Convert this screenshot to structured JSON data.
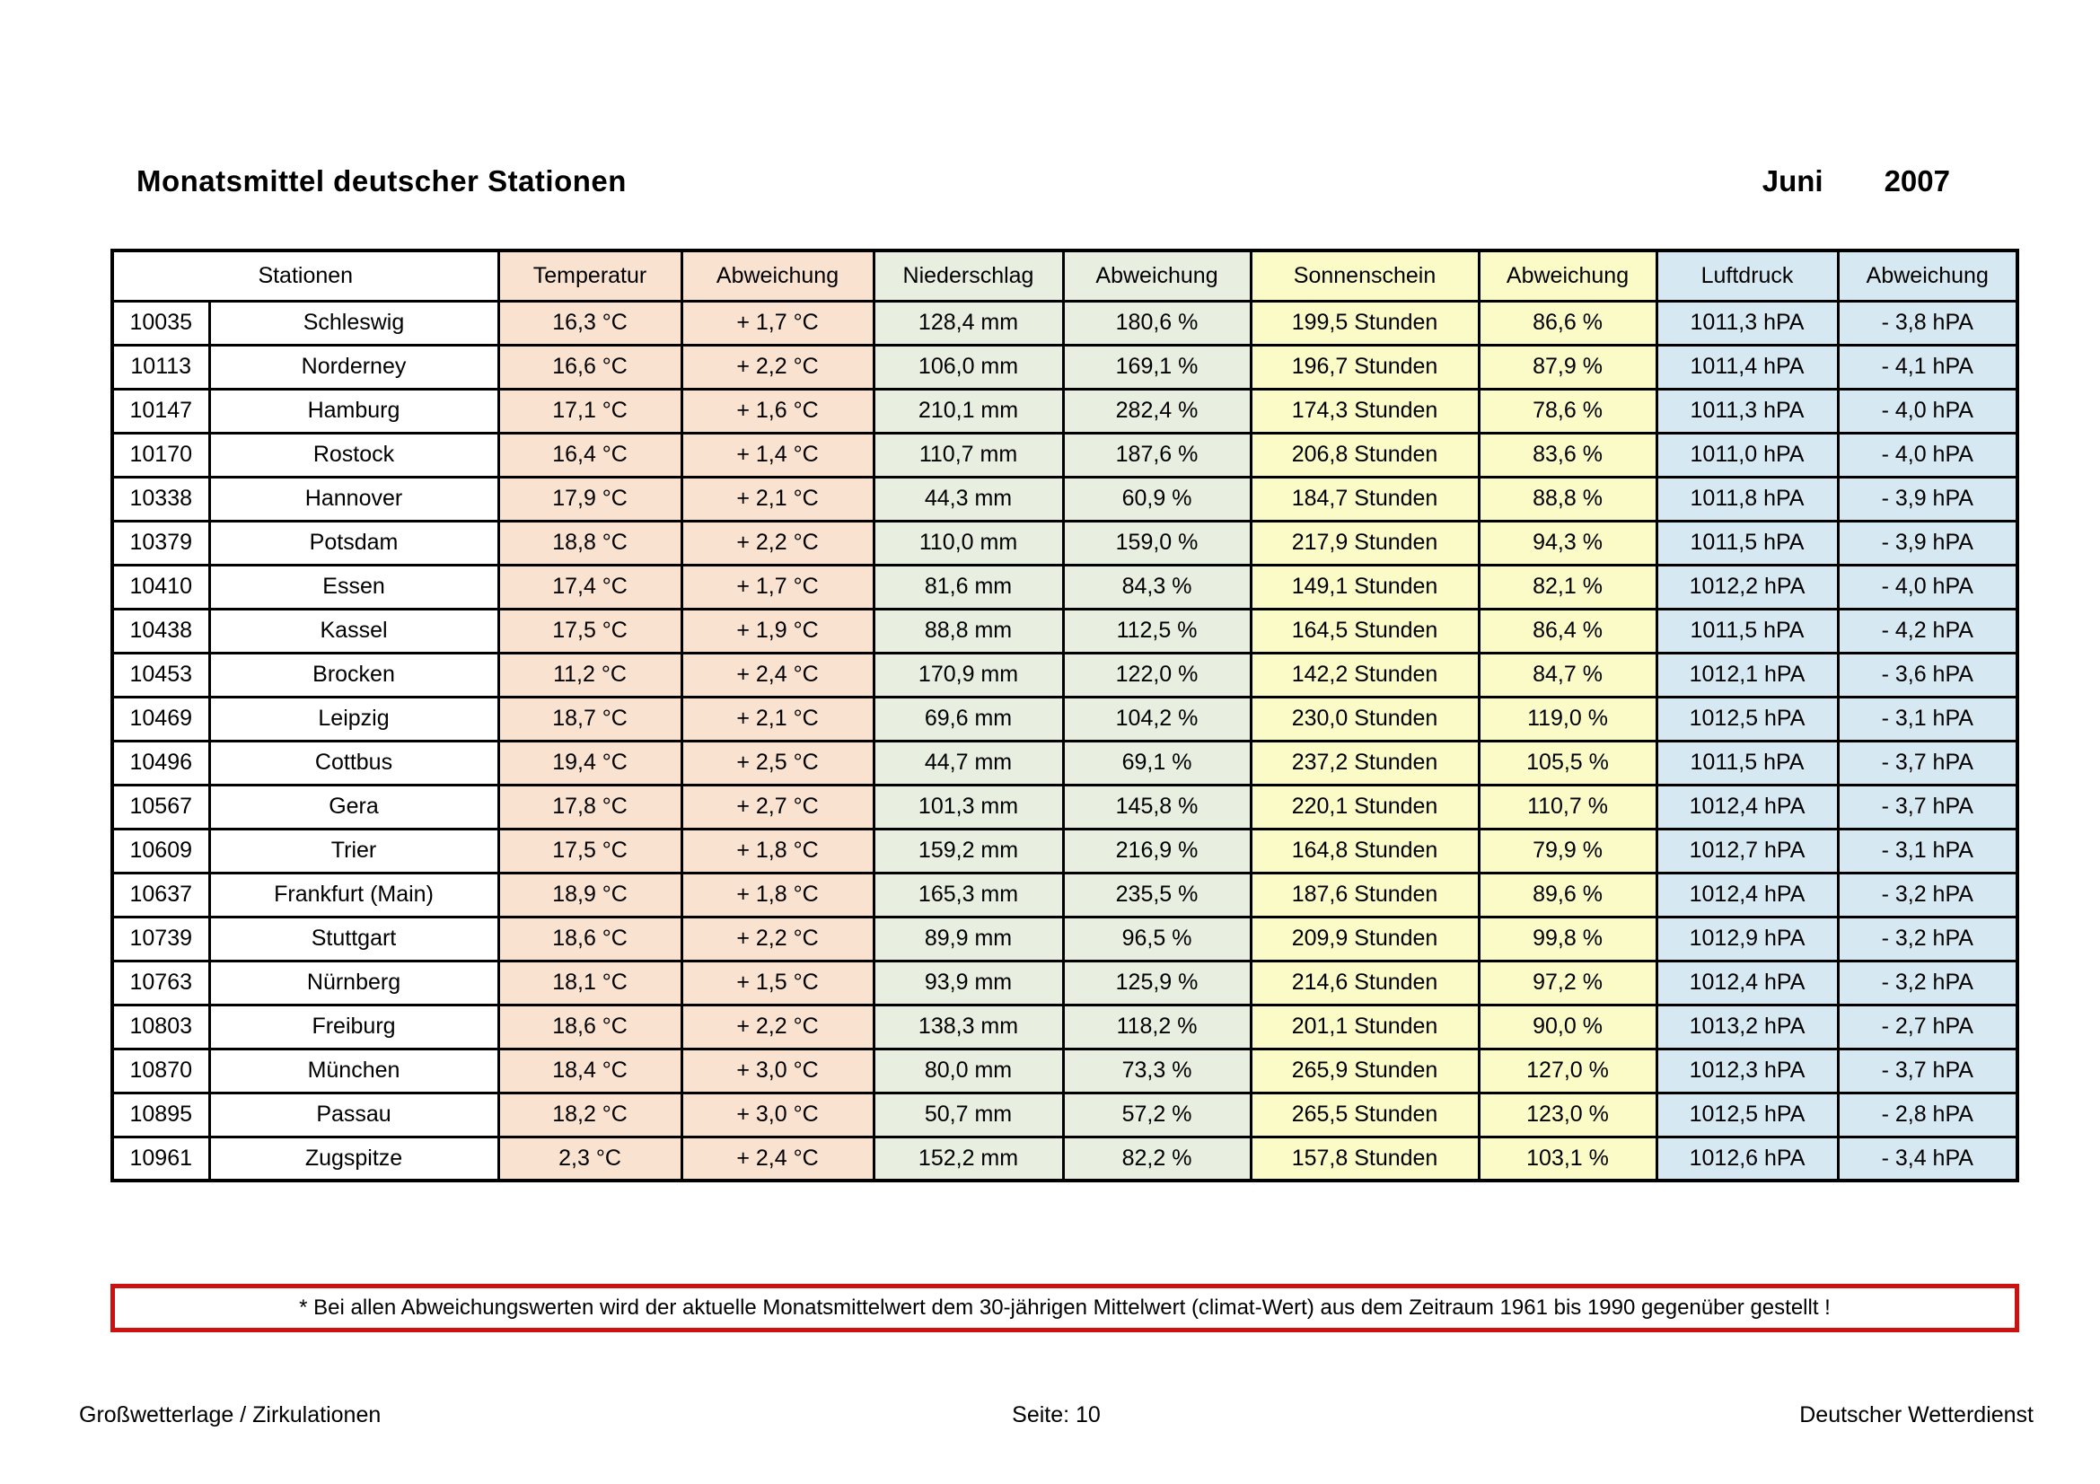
{
  "page": {
    "title": "Monatsmittel deutscher Stationen",
    "month": "Juni",
    "year": "2007",
    "note": "* Bei allen Abweichungswerten wird der aktuelle Monatsmittelwert dem 30-jährigen Mittelwert (climat-Wert) aus dem Zeitraum 1961 bis 1990 gegenüber gestellt !",
    "footer": {
      "left": "Großwetterlage / Zirkulationen",
      "center": "Seite: 10",
      "right": "Deutscher Wetterdienst"
    }
  },
  "colors": {
    "temperature": "#FAE2D1",
    "precipitation": "#E8EEE0",
    "sunshine": "#FBFBC8",
    "pressure": "#D6E8F2",
    "note_border": "#CC1111"
  },
  "table": {
    "header": {
      "stationen": "Stationen",
      "columns": [
        {
          "label": "Temperatur",
          "group": "temperature"
        },
        {
          "label": "Abweichung",
          "group": "temperature"
        },
        {
          "label": "Niederschlag",
          "group": "precipitation"
        },
        {
          "label": "Abweichung",
          "group": "precipitation"
        },
        {
          "label": "Sonnenschein",
          "group": "sunshine"
        },
        {
          "label": "Abweichung",
          "group": "sunshine"
        },
        {
          "label": "Luftdruck",
          "group": "pressure"
        },
        {
          "label": "Abweichung",
          "group": "pressure"
        }
      ]
    },
    "rows": [
      {
        "id": "10035",
        "name": "Schleswig",
        "values": [
          "16,3 °C",
          "+ 1,7 °C",
          "128,4 mm",
          "180,6 %",
          "199,5 Stunden",
          "86,6 %",
          "1011,3 hPA",
          "- 3,8 hPA"
        ]
      },
      {
        "id": "10113",
        "name": "Norderney",
        "values": [
          "16,6 °C",
          "+ 2,2 °C",
          "106,0 mm",
          "169,1 %",
          "196,7 Stunden",
          "87,9 %",
          "1011,4 hPA",
          "- 4,1 hPA"
        ]
      },
      {
        "id": "10147",
        "name": "Hamburg",
        "values": [
          "17,1 °C",
          "+ 1,6 °C",
          "210,1 mm",
          "282,4 %",
          "174,3 Stunden",
          "78,6 %",
          "1011,3 hPA",
          "- 4,0 hPA"
        ]
      },
      {
        "id": "10170",
        "name": "Rostock",
        "values": [
          "16,4 °C",
          "+ 1,4 °C",
          "110,7 mm",
          "187,6 %",
          "206,8 Stunden",
          "83,6 %",
          "1011,0 hPA",
          "- 4,0 hPA"
        ]
      },
      {
        "id": "10338",
        "name": "Hannover",
        "values": [
          "17,9 °C",
          "+ 2,1 °C",
          "44,3 mm",
          "60,9 %",
          "184,7 Stunden",
          "88,8 %",
          "1011,8 hPA",
          "- 3,9 hPA"
        ]
      },
      {
        "id": "10379",
        "name": "Potsdam",
        "values": [
          "18,8 °C",
          "+ 2,2 °C",
          "110,0 mm",
          "159,0 %",
          "217,9 Stunden",
          "94,3 %",
          "1011,5 hPA",
          "- 3,9 hPA"
        ]
      },
      {
        "id": "10410",
        "name": "Essen",
        "values": [
          "17,4 °C",
          "+ 1,7 °C",
          "81,6 mm",
          "84,3 %",
          "149,1 Stunden",
          "82,1 %",
          "1012,2 hPA",
          "- 4,0 hPA"
        ]
      },
      {
        "id": "10438",
        "name": "Kassel",
        "values": [
          "17,5 °C",
          "+ 1,9 °C",
          "88,8 mm",
          "112,5 %",
          "164,5 Stunden",
          "86,4 %",
          "1011,5 hPA",
          "- 4,2 hPA"
        ]
      },
      {
        "id": "10453",
        "name": "Brocken",
        "values": [
          "11,2 °C",
          "+ 2,4 °C",
          "170,9 mm",
          "122,0 %",
          "142,2 Stunden",
          "84,7 %",
          "1012,1 hPA",
          "- 3,6 hPA"
        ]
      },
      {
        "id": "10469",
        "name": "Leipzig",
        "values": [
          "18,7 °C",
          "+ 2,1 °C",
          "69,6 mm",
          "104,2 %",
          "230,0 Stunden",
          "119,0 %",
          "1012,5 hPA",
          "- 3,1 hPA"
        ]
      },
      {
        "id": "10496",
        "name": "Cottbus",
        "values": [
          "19,4 °C",
          "+ 2,5 °C",
          "44,7 mm",
          "69,1 %",
          "237,2 Stunden",
          "105,5 %",
          "1011,5 hPA",
          "- 3,7 hPA"
        ]
      },
      {
        "id": "10567",
        "name": "Gera",
        "values": [
          "17,8 °C",
          "+ 2,7 °C",
          "101,3 mm",
          "145,8 %",
          "220,1 Stunden",
          "110,7 %",
          "1012,4 hPA",
          "- 3,7 hPA"
        ]
      },
      {
        "id": "10609",
        "name": "Trier",
        "values": [
          "17,5 °C",
          "+ 1,8 °C",
          "159,2 mm",
          "216,9 %",
          "164,8 Stunden",
          "79,9 %",
          "1012,7 hPA",
          "- 3,1 hPA"
        ]
      },
      {
        "id": "10637",
        "name": "Frankfurt (Main)",
        "values": [
          "18,9 °C",
          "+ 1,8 °C",
          "165,3 mm",
          "235,5 %",
          "187,6 Stunden",
          "89,6 %",
          "1012,4 hPA",
          "- 3,2 hPA"
        ]
      },
      {
        "id": "10739",
        "name": "Stuttgart",
        "values": [
          "18,6 °C",
          "+ 2,2 °C",
          "89,9 mm",
          "96,5 %",
          "209,9 Stunden",
          "99,8 %",
          "1012,9 hPA",
          "- 3,2 hPA"
        ]
      },
      {
        "id": "10763",
        "name": "Nürnberg",
        "values": [
          "18,1 °C",
          "+ 1,5 °C",
          "93,9 mm",
          "125,9 %",
          "214,6 Stunden",
          "97,2 %",
          "1012,4 hPA",
          "- 3,2 hPA"
        ]
      },
      {
        "id": "10803",
        "name": "Freiburg",
        "values": [
          "18,6 °C",
          "+ 2,2 °C",
          "138,3 mm",
          "118,2 %",
          "201,1 Stunden",
          "90,0 %",
          "1013,2 hPA",
          "- 2,7 hPA"
        ]
      },
      {
        "id": "10870",
        "name": "München",
        "values": [
          "18,4 °C",
          "+ 3,0 °C",
          "80,0 mm",
          "73,3 %",
          "265,9 Stunden",
          "127,0 %",
          "1012,3 hPA",
          "- 3,7 hPA"
        ]
      },
      {
        "id": "10895",
        "name": "Passau",
        "values": [
          "18,2 °C",
          "+ 3,0 °C",
          "50,7 mm",
          "57,2 %",
          "265,5 Stunden",
          "123,0 %",
          "1012,5 hPA",
          "- 2,8 hPA"
        ]
      },
      {
        "id": "10961",
        "name": "Zugspitze",
        "values": [
          "2,3 °C",
          "+ 2,4 °C",
          "152,2 mm",
          "82,2 %",
          "157,8 Stunden",
          "103,1 %",
          "1012,6 hPA",
          "- 3,4 hPA"
        ]
      }
    ]
  }
}
